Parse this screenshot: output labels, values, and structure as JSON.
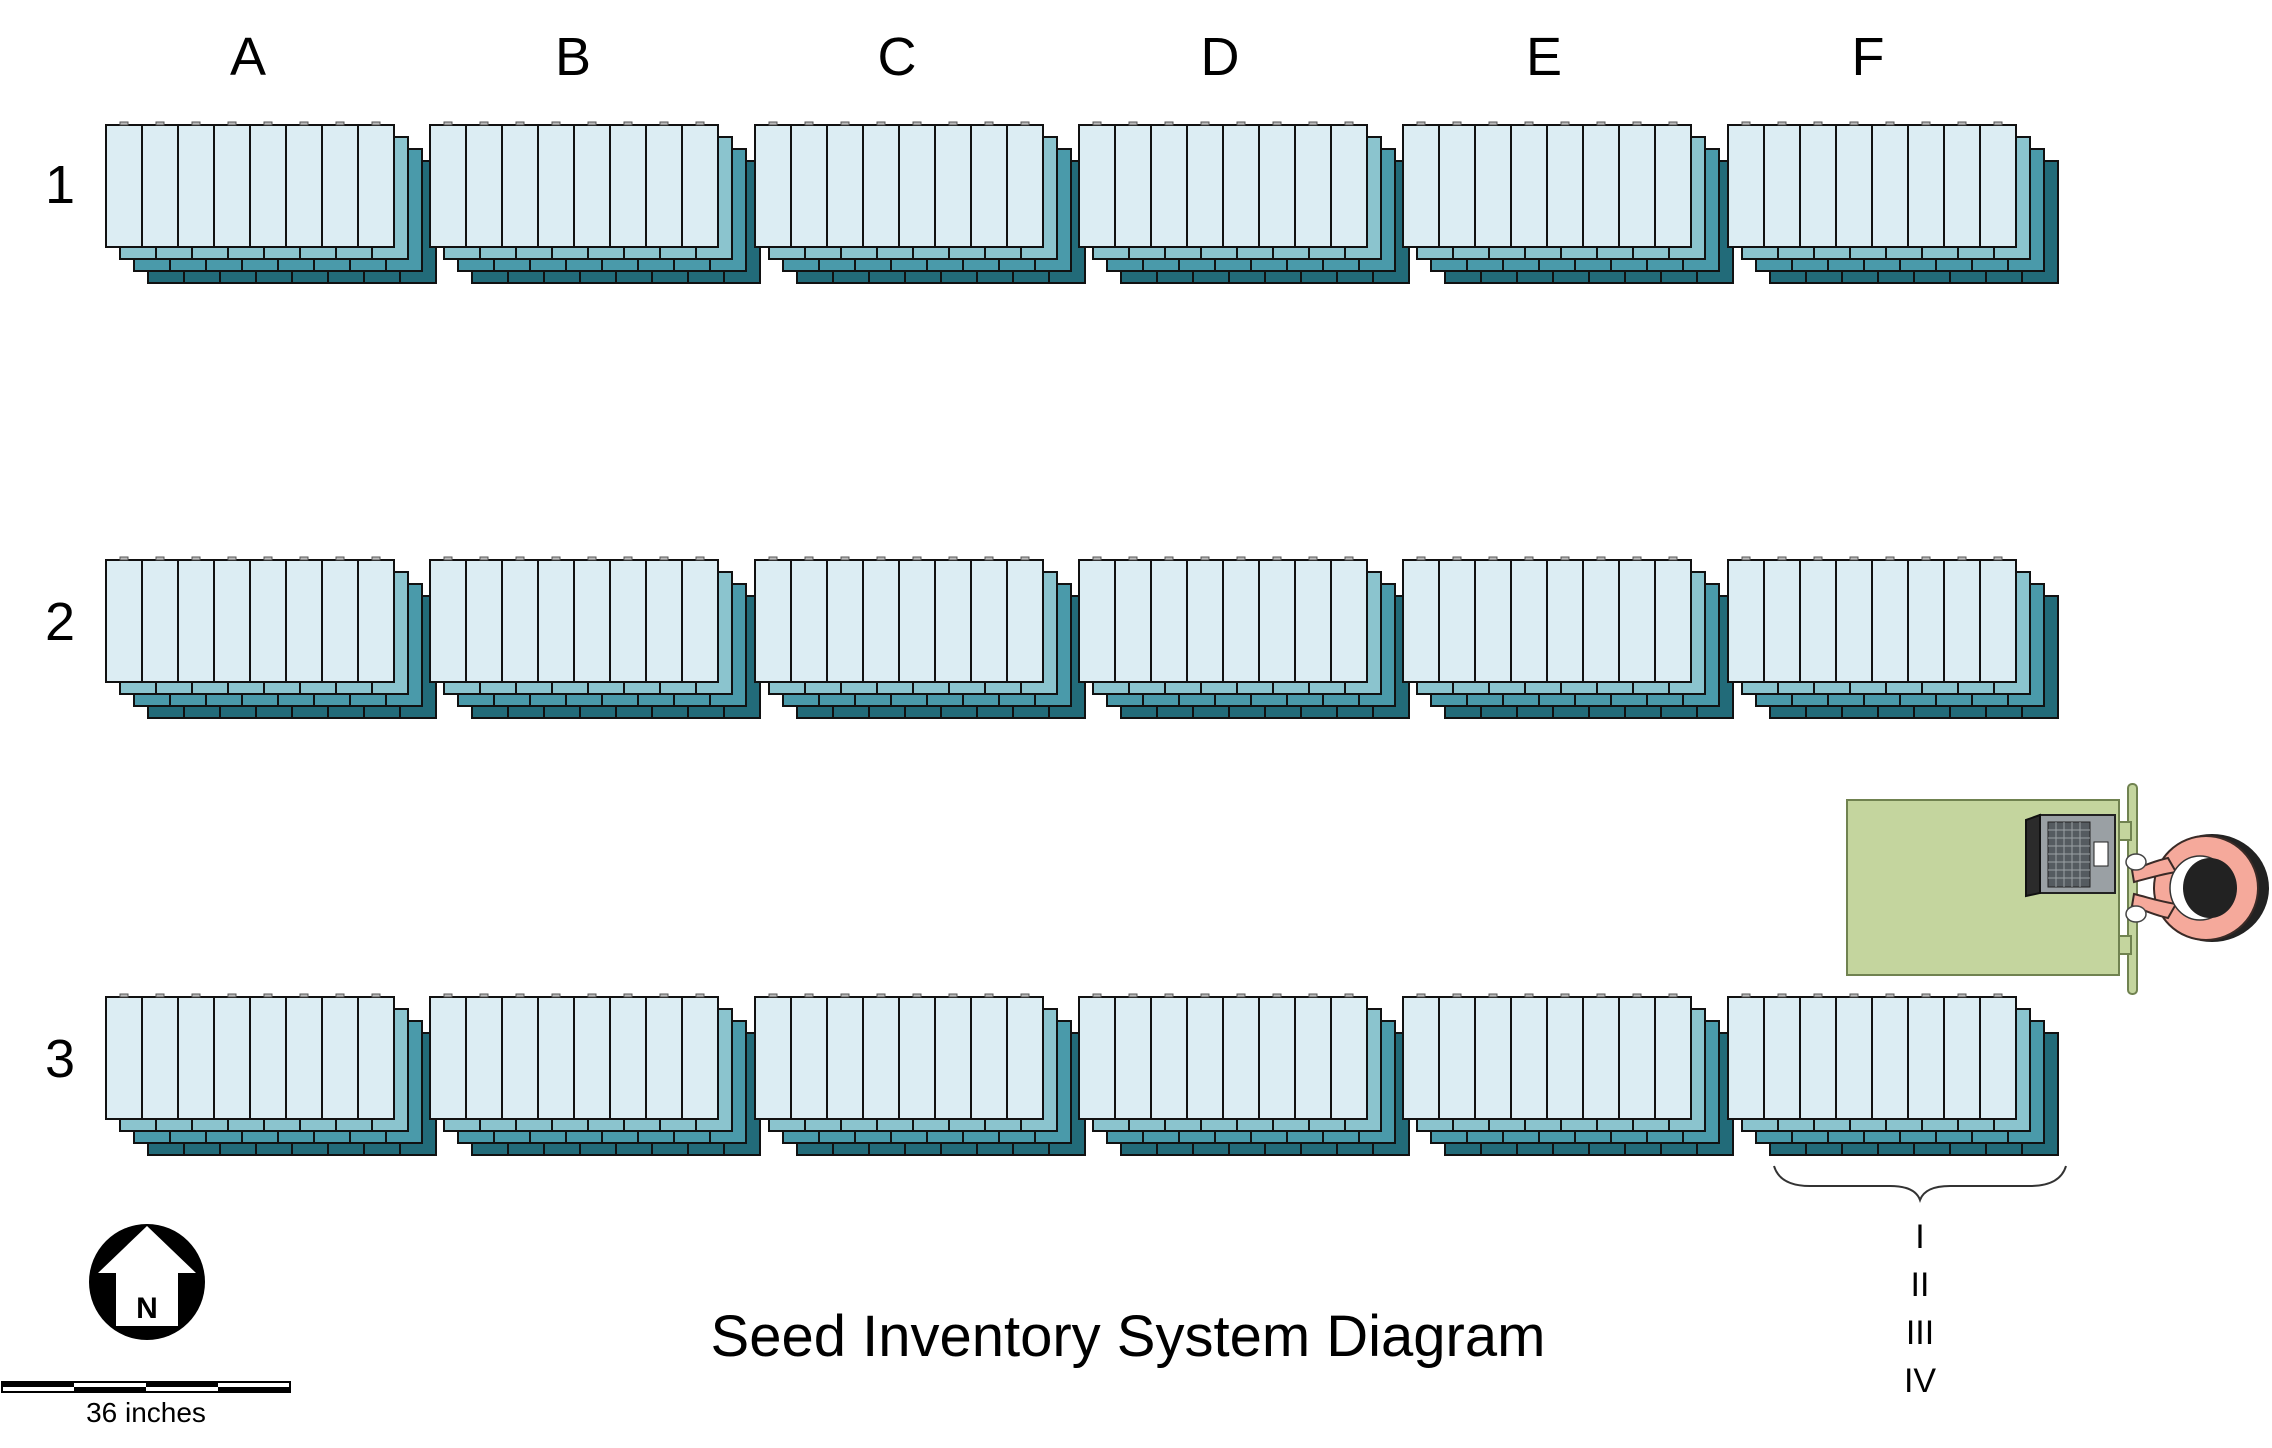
{
  "title": "Seed Inventory System Diagram",
  "columns": [
    "A",
    "B",
    "C",
    "D",
    "E",
    "F"
  ],
  "rows": [
    "1",
    "2",
    "3"
  ],
  "layers": [
    "I",
    "II",
    "III",
    "IV"
  ],
  "north": {
    "label": "N"
  },
  "scale_bar": {
    "label": "36 inches"
  },
  "workstation": {
    "desk_icon": "desk",
    "laptop_icon": "laptop",
    "person_icon": "person-top-view"
  },
  "colors": {
    "bin_front": "#dcedf3",
    "bin_layer_2": "#8bc4ce",
    "bin_layer_3": "#4a9aaa",
    "bin_layer_4": "#226b79",
    "outline": "#111111",
    "desk": "#c4d59e",
    "desk_stroke": "#708250",
    "skin": "#f5a99b"
  }
}
